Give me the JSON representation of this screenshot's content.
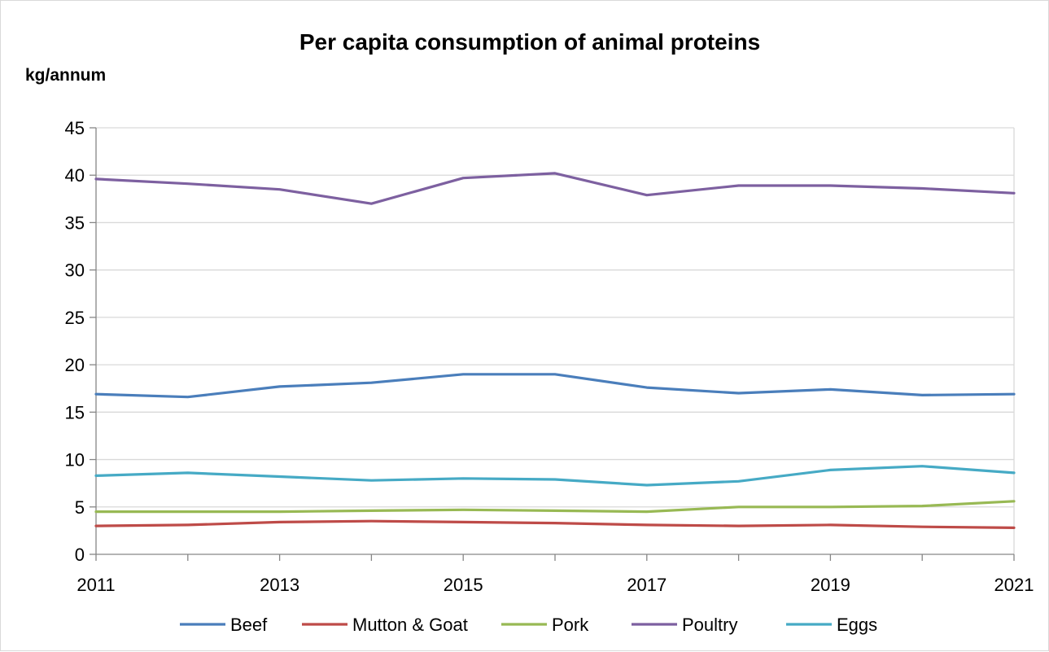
{
  "chart_data": {
    "type": "line",
    "title": "Per capita consumption of animal proteins",
    "ylabel": "kg/annum",
    "xlabel": "",
    "x": [
      2011,
      2012,
      2013,
      2014,
      2015,
      2016,
      2017,
      2018,
      2019,
      2020,
      2021
    ],
    "x_tick_labels": [
      "2011",
      "2013",
      "2015",
      "2017",
      "2019",
      "2021"
    ],
    "x_tick_values": [
      2011,
      2013,
      2015,
      2017,
      2019,
      2021
    ],
    "y_ticks": [
      0,
      5,
      10,
      15,
      20,
      25,
      30,
      35,
      40,
      45
    ],
    "y_tick_labels": [
      "0",
      "5",
      "10",
      "15",
      "20",
      "25",
      "30",
      "35",
      "40",
      "45"
    ],
    "ylim": [
      0,
      45
    ],
    "xlim": [
      2011,
      2021
    ],
    "grid": true,
    "legend_position": "bottom",
    "series": [
      {
        "name": "Beef",
        "color": "#4a7ebb",
        "values": [
          16.9,
          16.6,
          17.7,
          18.1,
          19.0,
          19.0,
          17.6,
          17.0,
          17.4,
          16.8,
          16.9
        ]
      },
      {
        "name": "Mutton & Goat",
        "color": "#be4b48",
        "values": [
          3.0,
          3.1,
          3.4,
          3.5,
          3.4,
          3.3,
          3.1,
          3.0,
          3.1,
          2.9,
          2.8
        ]
      },
      {
        "name": "Pork",
        "color": "#98b954",
        "values": [
          4.5,
          4.5,
          4.5,
          4.6,
          4.7,
          4.6,
          4.5,
          5.0,
          5.0,
          5.1,
          5.6
        ]
      },
      {
        "name": "Poultry",
        "color": "#7d60a0",
        "values": [
          39.6,
          39.1,
          38.5,
          37.0,
          39.7,
          40.2,
          37.9,
          38.9,
          38.9,
          38.6,
          38.1
        ]
      },
      {
        "name": "Eggs",
        "color": "#46aac5",
        "values": [
          8.3,
          8.6,
          8.2,
          7.8,
          8.0,
          7.9,
          7.3,
          7.7,
          8.9,
          9.3,
          8.6
        ]
      }
    ]
  }
}
